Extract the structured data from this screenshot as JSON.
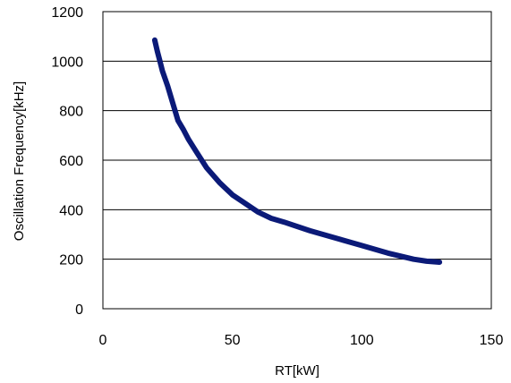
{
  "chart_data": {
    "type": "line",
    "xlabel": "RT[kW]",
    "ylabel": "Oscillation Frequency[kHz]",
    "xlim": [
      0,
      150
    ],
    "ylim": [
      0,
      1200
    ],
    "x_ticks": [
      "0",
      "50",
      "100",
      "150"
    ],
    "y_ticks": [
      "0",
      "200",
      "400",
      "600",
      "800",
      "1000",
      "1200"
    ],
    "grid": {
      "horizontal": true,
      "vertical": false
    },
    "legend": "none",
    "series": [
      {
        "color": "#0b1a78",
        "x": [
          20,
          21,
          22,
          23,
          25,
          27,
          29,
          31,
          33,
          36,
          40,
          45,
          50,
          55,
          60,
          65,
          70,
          80,
          90,
          100,
          110,
          120,
          125,
          130
        ],
        "y": [
          1085,
          1040,
          1000,
          960,
          900,
          830,
          760,
          725,
          685,
          635,
          570,
          510,
          460,
          425,
          390,
          365,
          350,
          315,
          285,
          255,
          225,
          200,
          192,
          188
        ]
      }
    ]
  }
}
